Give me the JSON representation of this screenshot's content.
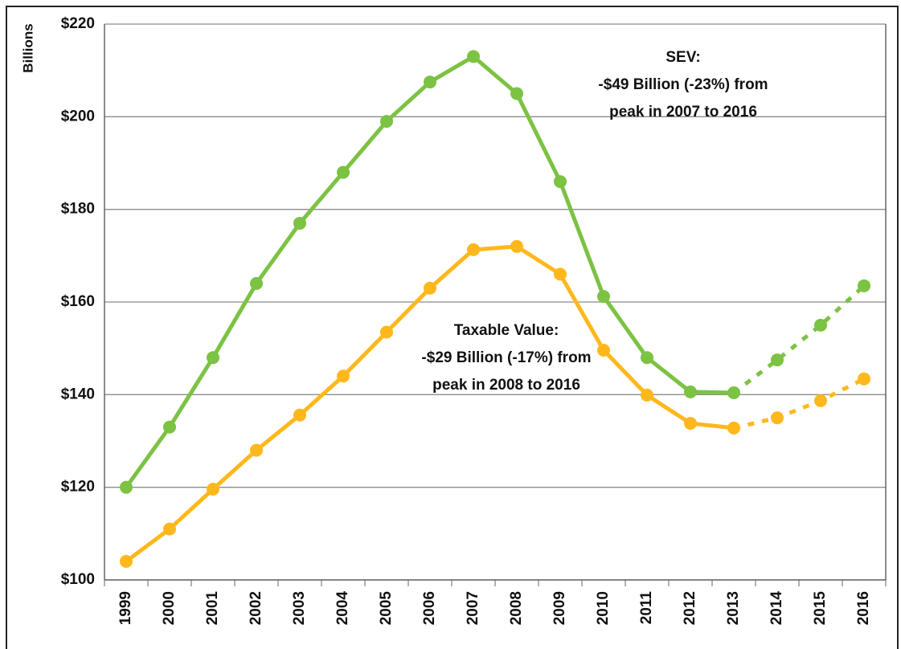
{
  "chart_data": {
    "type": "line",
    "y_label": "Billions",
    "categories": [
      "1999",
      "2000",
      "2001",
      "2002",
      "2003",
      "2004",
      "2005",
      "2006",
      "2007",
      "2008",
      "2009",
      "2010",
      "2011",
      "2012",
      "2013",
      "2014",
      "2015",
      "2016"
    ],
    "dashed_from": "2013",
    "series": [
      {
        "name": "SEV",
        "color": "#7cc243",
        "values": [
          120,
          133,
          148,
          164,
          177,
          188,
          199,
          207.5,
          213,
          205,
          186,
          161.2,
          148,
          140.6,
          140.4,
          147.5,
          155,
          163.5
        ]
      },
      {
        "name": "Taxable Value",
        "color": "#ffb81c",
        "values": [
          104,
          111,
          119.6,
          128,
          135.6,
          144,
          153.5,
          163,
          171.3,
          172,
          166,
          149.6,
          139.9,
          133.8,
          132.8,
          135,
          138.7,
          143.4
        ]
      }
    ],
    "annotations": [
      {
        "series": "SEV",
        "lines": [
          "SEV:",
          "-$49 Billion (-23%) from",
          "peak in 2007 to 2016"
        ]
      },
      {
        "series": "Taxable Value",
        "lines": [
          "Taxable Value:",
          "-$29 Billion (-17%) from",
          "peak in 2008 to 2016"
        ]
      }
    ],
    "ylim": [
      100,
      220
    ],
    "yticks": [
      {
        "value": 100,
        "label": "$100"
      },
      {
        "value": 120,
        "label": "$120"
      },
      {
        "value": 140,
        "label": "$140"
      },
      {
        "value": 160,
        "label": "$160"
      },
      {
        "value": 180,
        "label": "$180"
      },
      {
        "value": 200,
        "label": "$200"
      },
      {
        "value": 220,
        "label": "$220"
      }
    ],
    "grid": true
  }
}
